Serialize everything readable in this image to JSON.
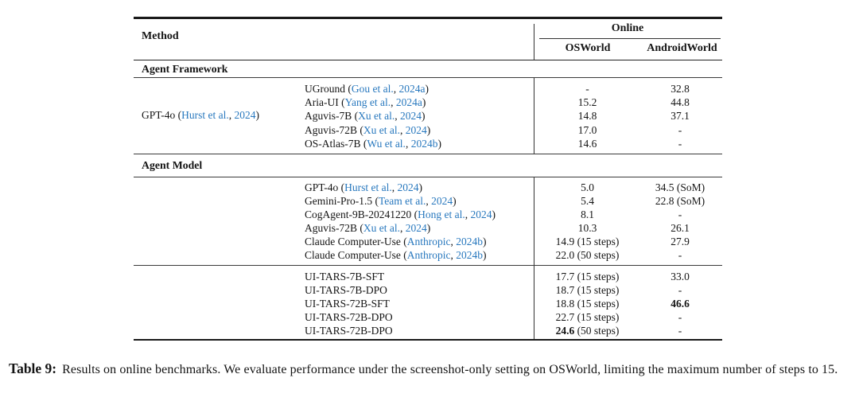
{
  "colors": {
    "citation_link": "#2878BE",
    "text": "#141414",
    "rule": "#1a1a1a"
  },
  "table": {
    "header": {
      "method": "Method",
      "group": "Online",
      "col1": "OSWorld",
      "col2": "AndroidWorld"
    },
    "sections": [
      {
        "title": "Agent Framework",
        "group_label": {
          "method": "GPT-4o",
          "cite_authors": "Hurst et al.",
          "cite_year": "2024"
        },
        "rows": [
          {
            "method": "UGround",
            "cite_authors": "Gou et al.",
            "cite_year": "2024a",
            "osworld": {
              "value": "-"
            },
            "androidworld": {
              "value": "32.8"
            }
          },
          {
            "method": "Aria-UI",
            "cite_authors": "Yang et al.",
            "cite_year": "2024a",
            "osworld": {
              "value": "15.2"
            },
            "androidworld": {
              "value": "44.8"
            }
          },
          {
            "method": "Aguvis-7B",
            "cite_authors": "Xu et al.",
            "cite_year": "2024",
            "osworld": {
              "value": "14.8"
            },
            "androidworld": {
              "value": "37.1"
            }
          },
          {
            "method": "Aguvis-72B",
            "cite_authors": "Xu et al.",
            "cite_year": "2024",
            "osworld": {
              "value": "17.0"
            },
            "androidworld": {
              "value": "-"
            }
          },
          {
            "method": "OS-Atlas-7B",
            "cite_authors": "Wu et al.",
            "cite_year": "2024b",
            "osworld": {
              "value": "14.6"
            },
            "androidworld": {
              "value": "-"
            }
          }
        ]
      },
      {
        "title": "Agent Model",
        "rows": [
          {
            "method": "GPT-4o",
            "cite_authors": "Hurst et al.",
            "cite_year": "2024",
            "osworld": {
              "value": "5.0"
            },
            "androidworld": {
              "value": "34.5",
              "note": " (SoM)"
            }
          },
          {
            "method": "Gemini-Pro-1.5",
            "cite_authors": "Team et al.",
            "cite_year": "2024",
            "osworld": {
              "value": "5.4"
            },
            "androidworld": {
              "value": "22.8",
              "note": " (SoM)"
            }
          },
          {
            "method": "CogAgent-9B-20241220",
            "cite_authors": "Hong et al.",
            "cite_year": "2024",
            "osworld": {
              "value": "8.1"
            },
            "androidworld": {
              "value": "-"
            }
          },
          {
            "method": "Aguvis-72B",
            "cite_authors": "Xu et al.",
            "cite_year": "2024",
            "osworld": {
              "value": "10.3"
            },
            "androidworld": {
              "value": "26.1"
            }
          },
          {
            "method": "Claude Computer-Use",
            "cite_authors": "Anthropic",
            "cite_year": "2024b",
            "osworld": {
              "value": "14.9",
              "note": " (15 steps)"
            },
            "androidworld": {
              "value": "27.9"
            }
          },
          {
            "method": "Claude Computer-Use",
            "cite_authors": "Anthropic",
            "cite_year": "2024b",
            "osworld": {
              "value": "22.0",
              "note": " (50 steps)"
            },
            "androidworld": {
              "value": "-"
            }
          }
        ]
      },
      {
        "rows": [
          {
            "method": "UI-TARS-7B-SFT",
            "osworld": {
              "value": "17.7",
              "note": " (15 steps)"
            },
            "androidworld": {
              "value": "33.0"
            }
          },
          {
            "method": "UI-TARS-7B-DPO",
            "osworld": {
              "value": "18.7",
              "note": " (15 steps)"
            },
            "androidworld": {
              "value": "-"
            }
          },
          {
            "method": "UI-TARS-72B-SFT",
            "osworld": {
              "value": "18.8",
              "note": " (15 steps)"
            },
            "androidworld": {
              "value": "46.6",
              "bold": true
            }
          },
          {
            "method": "UI-TARS-72B-DPO",
            "osworld": {
              "value": "22.7",
              "note": " (15 steps)"
            },
            "androidworld": {
              "value": "-"
            }
          },
          {
            "method": "UI-TARS-72B-DPO",
            "osworld": {
              "value": "24.6",
              "note": " (50 steps)",
              "bold": true
            },
            "androidworld": {
              "value": "-"
            }
          }
        ]
      }
    ]
  },
  "caption": {
    "label": "Table 9:",
    "text": "Results on online benchmarks. We evaluate performance under the screenshot-only setting on OSWorld, limiting the maximum number of steps to 15."
  }
}
